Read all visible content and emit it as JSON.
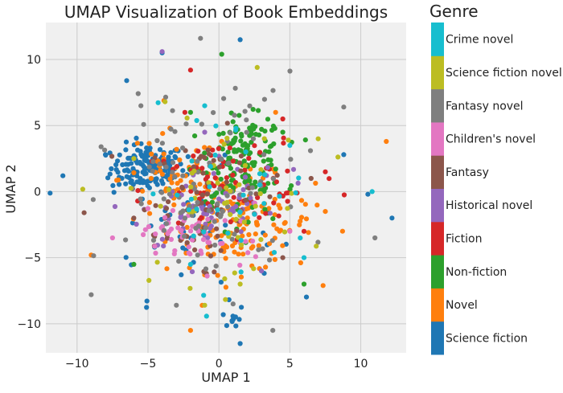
{
  "chart_data": {
    "type": "scatter",
    "title": "UMAP Visualization of Book Embeddings",
    "xlabel": "UMAP 1",
    "ylabel": "UMAP 2",
    "xlim": [
      -12.2,
      13.2
    ],
    "ylim": [
      -12.2,
      12.8
    ],
    "xticks": [
      -10,
      -5,
      0,
      5,
      10
    ],
    "xtick_labels": [
      "−10",
      "−5",
      "0",
      "5",
      "10"
    ],
    "yticks": [
      -10,
      -5,
      0,
      5,
      10
    ],
    "ytick_labels": [
      "−10",
      "−5",
      "0",
      "5",
      "10"
    ],
    "grid": true,
    "background": "#f0f0f0",
    "legend": {
      "title": "Genre",
      "placement": "right colorbar",
      "entries": [
        {
          "name": "Science fiction",
          "color": "#1f77b4"
        },
        {
          "name": "Novel",
          "color": "#ff7f0e"
        },
        {
          "name": "Non-fiction",
          "color": "#2ca02c"
        },
        {
          "name": "Fiction",
          "color": "#d62728"
        },
        {
          "name": "Historical novel",
          "color": "#9467bd"
        },
        {
          "name": "Fantasy",
          "color": "#8c564b"
        },
        {
          "name": "Children's novel",
          "color": "#e377c2"
        },
        {
          "name": "Fantasy novel",
          "color": "#7f7f7f"
        },
        {
          "name": "Science fiction novel",
          "color": "#bcbd22"
        },
        {
          "name": "Crime novel",
          "color": "#17becf"
        }
      ]
    },
    "series": [
      {
        "name": "Science fiction",
        "clusters": [
          [
            -5.0,
            1.8,
            1.3,
            0.9,
            160
          ],
          [
            1.0,
            -9.5,
            0.4,
            0.5,
            10
          ],
          [
            -2.0,
            -3.0,
            3.0,
            2.5,
            40
          ]
        ],
        "points": [
          [
            -11.0,
            1.2
          ],
          [
            12.2,
            -2.0
          ],
          [
            10.5,
            -0.2
          ],
          [
            -6.5,
            8.4
          ],
          [
            1.5,
            11.5
          ],
          [
            -4.0,
            10.5
          ],
          [
            8.8,
            2.8
          ],
          [
            -8.0,
            2.8
          ],
          [
            0.2,
            2.0
          ],
          [
            1.5,
            -11.5
          ]
        ]
      },
      {
        "name": "Novel",
        "clusters": [
          [
            1.5,
            -2.5,
            2.6,
            1.8,
            140
          ],
          [
            -3.0,
            1.0,
            2.0,
            1.8,
            60
          ]
        ],
        "points": [
          [
            11.8,
            3.8
          ],
          [
            -2.0,
            -10.5
          ],
          [
            -9.0,
            -4.8
          ],
          [
            7.5,
            -1.5
          ],
          [
            4.0,
            6.0
          ]
        ]
      },
      {
        "name": "Non-fiction",
        "clusters": [
          [
            2.0,
            2.8,
            1.3,
            1.4,
            130
          ],
          [
            0.8,
            -0.5,
            1.8,
            1.5,
            30
          ]
        ],
        "points": [
          [
            0.2,
            10.4
          ],
          [
            6.0,
            -7.0
          ],
          [
            -6.0,
            -5.5
          ],
          [
            4.5,
            4.5
          ],
          [
            -2.0,
            6.0
          ]
        ]
      },
      {
        "name": "Fiction",
        "clusters": [
          [
            -0.5,
            0.0,
            2.5,
            2.0,
            50
          ],
          [
            3.5,
            1.0,
            2.5,
            2.0,
            25
          ]
        ],
        "points": [
          [
            -2.0,
            9.2
          ],
          [
            7.5,
            1.5
          ],
          [
            -2.4,
            6.0
          ],
          [
            4.5,
            5.5
          ],
          [
            6.0,
            -3.0
          ]
        ]
      },
      {
        "name": "Historical novel",
        "clusters": [
          [
            -1.5,
            -1.5,
            2.0,
            1.6,
            50
          ],
          [
            2.0,
            0.5,
            1.5,
            1.5,
            20
          ]
        ],
        "points": [
          [
            -4.0,
            10.6
          ],
          [
            -1.0,
            4.5
          ],
          [
            3.0,
            -6.0
          ]
        ]
      },
      {
        "name": "Fantasy",
        "clusters": [
          [
            -1.0,
            0.5,
            2.5,
            2.0,
            45
          ],
          [
            -3.0,
            -3.5,
            1.8,
            1.4,
            25
          ]
        ],
        "points": [
          [
            -6.0,
            -2.0
          ],
          [
            6.5,
            1.0
          ],
          [
            -9.5,
            -1.6
          ],
          [
            4.5,
            -5.0
          ]
        ]
      },
      {
        "name": "Children's novel",
        "clusters": [
          [
            -3.0,
            -3.2,
            1.2,
            1.0,
            35
          ],
          [
            0.0,
            -3.5,
            1.8,
            1.3,
            20
          ]
        ],
        "points": [
          [
            -7.5,
            -3.5
          ],
          [
            5.0,
            -3.0
          ]
        ]
      },
      {
        "name": "Fantasy novel",
        "clusters": [
          [
            -1.0,
            -1.0,
            3.5,
            3.0,
            80
          ],
          [
            0.0,
            5.0,
            3.0,
            2.0,
            25
          ]
        ],
        "points": [
          [
            -1.3,
            11.6
          ],
          [
            -3.0,
            -8.6
          ],
          [
            -1.5,
            -4.8
          ],
          [
            -9.0,
            -7.8
          ],
          [
            3.8,
            -10.5
          ],
          [
            11.0,
            -3.5
          ],
          [
            8.8,
            6.4
          ],
          [
            -5.5,
            6.5
          ],
          [
            1.0,
            -8.5
          ]
        ]
      },
      {
        "name": "Science fiction novel",
        "clusters": [
          [
            0.0,
            -1.0,
            3.2,
            3.0,
            50
          ]
        ],
        "points": [
          [
            2.7,
            9.4
          ],
          [
            1.5,
            -7.0
          ],
          [
            -1.0,
            -8.6
          ],
          [
            7.0,
            4.0
          ],
          [
            -6.0,
            2.5
          ],
          [
            -3.8,
            6.8
          ]
        ]
      },
      {
        "name": "Crime novel",
        "clusters": [
          [
            0.5,
            0.0,
            3.0,
            3.0,
            35
          ]
        ],
        "points": [
          [
            -1.0,
            6.5
          ],
          [
            5.0,
            3.5
          ],
          [
            -2.0,
            -5.5
          ],
          [
            6.0,
            -5.0
          ],
          [
            10.8,
            0.0
          ]
        ]
      }
    ]
  }
}
